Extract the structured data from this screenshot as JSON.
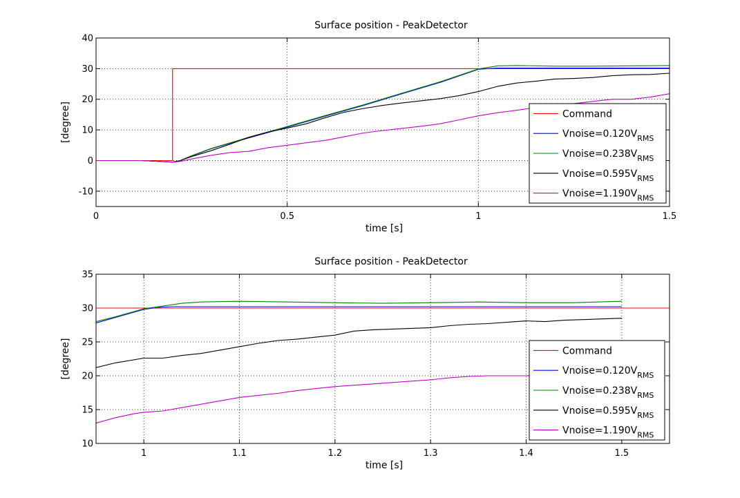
{
  "chart_data": [
    {
      "type": "line",
      "title": "Surface position - PeakDetector",
      "xlabel": "time [s]",
      "ylabel": "[degree]",
      "xlim": [
        0,
        1.5
      ],
      "ylim": [
        -15,
        40
      ],
      "xticks": [
        "0",
        "0.5",
        "1",
        "1.5"
      ],
      "xtick_values": [
        0,
        0.5,
        1,
        1.5
      ],
      "yticks": [
        "-10",
        "0",
        "10",
        "20",
        "30",
        "40"
      ],
      "ytick_values": [
        -10,
        0,
        10,
        20,
        30,
        40
      ],
      "grid": true,
      "legend_position": "bottom-right",
      "series": [
        {
          "name": "Command",
          "color": "#ff0000",
          "x": [
            0,
            0.2,
            0.2,
            1.5
          ],
          "y": [
            0,
            0,
            30,
            30
          ]
        },
        {
          "name": "Vnoise=0.120V",
          "name_subscript": "RMS",
          "color": "#0000ff",
          "x": [
            0,
            0.12,
            0.2,
            0.22,
            0.25,
            0.3,
            0.4,
            0.5,
            0.6,
            0.7,
            0.8,
            0.9,
            1.0,
            1.05,
            1.1,
            1.2,
            1.3,
            1.4,
            1.5
          ],
          "y": [
            0,
            0,
            -0.5,
            0,
            1.5,
            3.8,
            7.4,
            10.9,
            14.5,
            18.0,
            21.8,
            25.5,
            29.8,
            30.2,
            30.2,
            30.2,
            30.2,
            30.2,
            30.2
          ]
        },
        {
          "name": "Vnoise=0.238V",
          "name_subscript": "RMS",
          "color": "#008000",
          "x": [
            0,
            0.12,
            0.2,
            0.22,
            0.25,
            0.3,
            0.4,
            0.5,
            0.6,
            0.7,
            0.8,
            0.9,
            1.0,
            1.05,
            1.1,
            1.2,
            1.3,
            1.4,
            1.5
          ],
          "y": [
            0,
            0,
            -0.5,
            0,
            1.6,
            3.9,
            7.6,
            11.1,
            14.7,
            18.2,
            22.0,
            25.7,
            29.9,
            30.9,
            31.0,
            30.8,
            30.8,
            30.9,
            31.0
          ]
        },
        {
          "name": "Vnoise=0.595V",
          "name_subscript": "RMS",
          "color": "#000000",
          "x": [
            0,
            0.12,
            0.2,
            0.22,
            0.25,
            0.3,
            0.35,
            0.4,
            0.45,
            0.5,
            0.55,
            0.6,
            0.65,
            0.7,
            0.75,
            0.8,
            0.85,
            0.9,
            0.95,
            1.0,
            1.05,
            1.1,
            1.15,
            1.2,
            1.25,
            1.3,
            1.35,
            1.4,
            1.45,
            1.5
          ],
          "y": [
            0,
            0,
            -0.5,
            0,
            1.3,
            3.2,
            5.3,
            7.6,
            9.3,
            10.6,
            12.0,
            14.0,
            15.8,
            17.0,
            18.0,
            18.8,
            19.5,
            20.2,
            21.2,
            22.5,
            24.2,
            25.3,
            25.9,
            26.6,
            26.8,
            27.1,
            27.7,
            28.0,
            28.1,
            28.5
          ]
        },
        {
          "name": "Vnoise=1.190V",
          "name_subscript": "RMS",
          "color": "#bf00bf",
          "x": [
            0,
            0.12,
            0.2,
            0.22,
            0.25,
            0.3,
            0.35,
            0.4,
            0.45,
            0.5,
            0.55,
            0.6,
            0.65,
            0.7,
            0.75,
            0.8,
            0.85,
            0.9,
            0.95,
            1.0,
            1.05,
            1.1,
            1.15,
            1.2,
            1.25,
            1.3,
            1.35,
            1.4,
            1.45,
            1.5
          ],
          "y": [
            0,
            0,
            -0.5,
            -0.3,
            0.5,
            1.7,
            2.6,
            3.0,
            4.2,
            5.0,
            5.8,
            6.6,
            7.8,
            9.0,
            9.8,
            10.5,
            11.2,
            12.0,
            13.3,
            14.6,
            15.6,
            16.4,
            17.3,
            18.3,
            18.6,
            19.3,
            20.0,
            20.0,
            20.7,
            21.8
          ]
        }
      ]
    },
    {
      "type": "line",
      "title": "Surface position - PeakDetector",
      "xlabel": "time [s]",
      "ylabel": "[degree]",
      "xlim": [
        0.95,
        1.55
      ],
      "ylim": [
        10,
        35
      ],
      "xticks": [
        "1",
        "1.1",
        "1.2",
        "1.3",
        "1.4",
        "1.5"
      ],
      "xtick_values": [
        1,
        1.1,
        1.2,
        1.3,
        1.4,
        1.5
      ],
      "yticks": [
        "10",
        "15",
        "20",
        "25",
        "30",
        "35"
      ],
      "ytick_values": [
        10,
        15,
        20,
        25,
        30,
        35
      ],
      "grid": true,
      "legend_position": "bottom-right",
      "series": [
        {
          "name": "Command",
          "color": "#ff0000",
          "x": [
            0.95,
            1.55
          ],
          "y": [
            30,
            30
          ]
        },
        {
          "name": "Vnoise=0.120V",
          "name_subscript": "RMS",
          "color": "#0000ff",
          "x": [
            0.95,
            0.97,
            0.99,
            1.0,
            1.01,
            1.02,
            1.03,
            1.1,
            1.2,
            1.3,
            1.4,
            1.5
          ],
          "y": [
            27.8,
            28.6,
            29.4,
            29.8,
            30.0,
            30.15,
            30.2,
            30.2,
            30.2,
            30.2,
            30.2,
            30.2
          ]
        },
        {
          "name": "Vnoise=0.238V",
          "name_subscript": "RMS",
          "color": "#008000",
          "x": [
            0.95,
            0.97,
            0.99,
            1.0,
            1.02,
            1.04,
            1.06,
            1.1,
            1.15,
            1.2,
            1.25,
            1.3,
            1.35,
            1.4,
            1.45,
            1.5
          ],
          "y": [
            28.0,
            28.7,
            29.5,
            29.9,
            30.3,
            30.7,
            30.9,
            31.0,
            30.9,
            30.8,
            30.7,
            30.8,
            30.9,
            30.8,
            30.8,
            31.0
          ]
        },
        {
          "name": "Vnoise=0.595V",
          "name_subscript": "RMS",
          "color": "#000000",
          "x": [
            0.95,
            0.97,
            1.0,
            1.02,
            1.04,
            1.06,
            1.08,
            1.1,
            1.12,
            1.14,
            1.16,
            1.18,
            1.2,
            1.22,
            1.24,
            1.26,
            1.28,
            1.3,
            1.32,
            1.34,
            1.36,
            1.38,
            1.4,
            1.42,
            1.44,
            1.46,
            1.48,
            1.5
          ],
          "y": [
            21.2,
            21.9,
            22.6,
            22.6,
            23.0,
            23.3,
            23.8,
            24.3,
            24.8,
            25.2,
            25.4,
            25.7,
            26.0,
            26.6,
            26.8,
            26.9,
            27.0,
            27.1,
            27.4,
            27.6,
            27.7,
            27.9,
            28.1,
            28.0,
            28.2,
            28.3,
            28.4,
            28.5
          ]
        },
        {
          "name": "Vnoise=1.190V",
          "name_subscript": "RMS",
          "color": "#bf00bf",
          "x": [
            0.95,
            0.97,
            0.99,
            1.0,
            1.02,
            1.04,
            1.06,
            1.08,
            1.1,
            1.12,
            1.14,
            1.16,
            1.18,
            1.2,
            1.22,
            1.24,
            1.26,
            1.28,
            1.3,
            1.32,
            1.34,
            1.36,
            1.38,
            1.4,
            1.42,
            1.44
          ],
          "y": [
            13.0,
            13.8,
            14.4,
            14.6,
            14.8,
            15.3,
            15.8,
            16.3,
            16.8,
            17.1,
            17.4,
            17.8,
            18.1,
            18.4,
            18.6,
            18.8,
            19.0,
            19.2,
            19.4,
            19.7,
            19.9,
            20.0,
            20.0,
            20.0,
            20.1,
            20.2
          ]
        }
      ]
    }
  ]
}
